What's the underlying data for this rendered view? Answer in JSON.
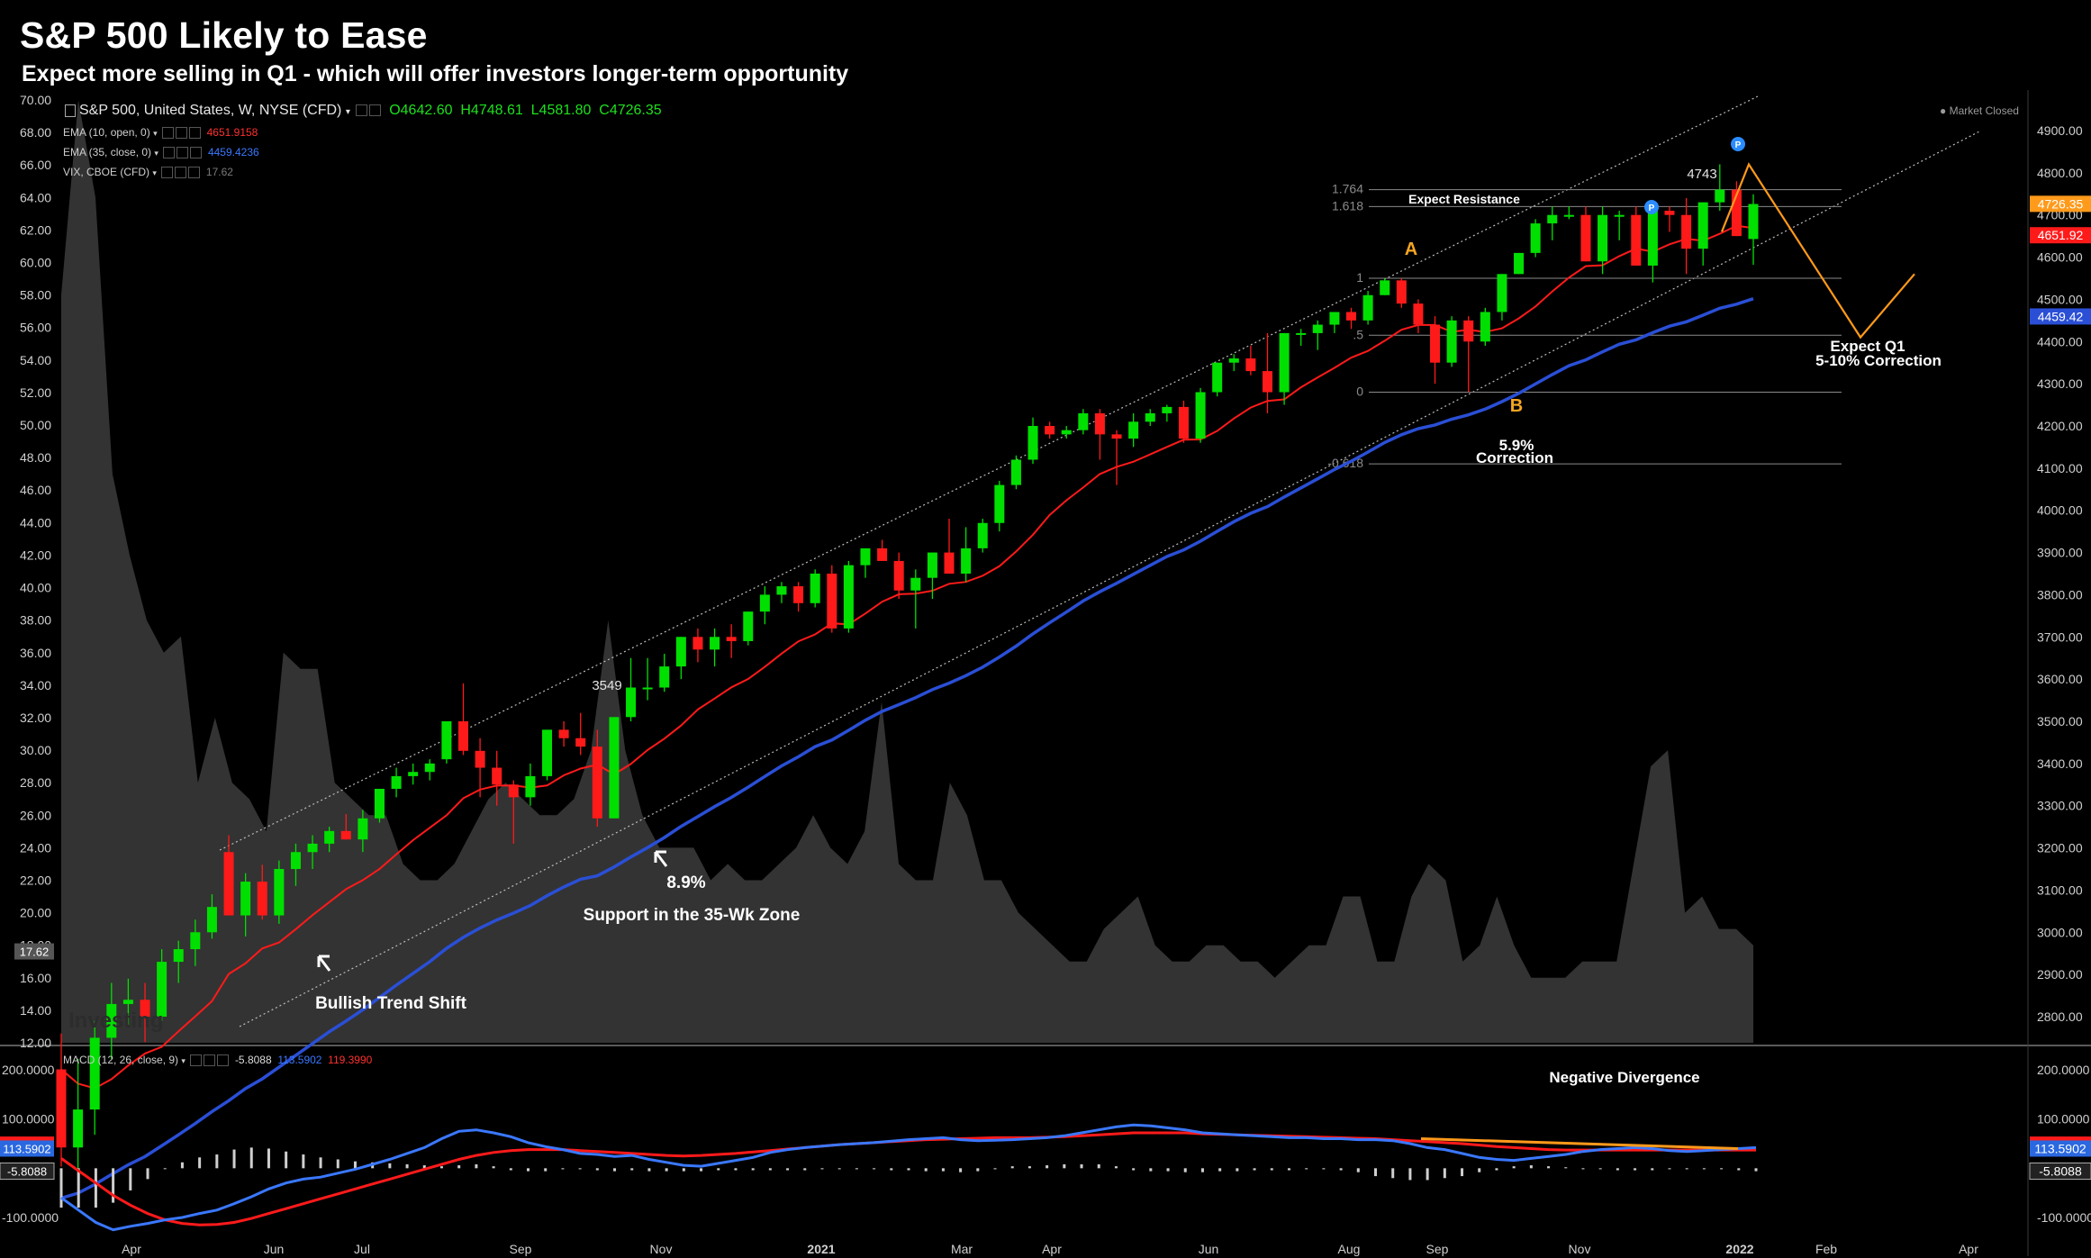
{
  "title": "S&P 500 Likely to Ease",
  "subtitle": "Expect more selling in Q1 - which will offer investors longer-term opportunity",
  "legend": {
    "instrument": "S&P 500, United States, W, NYSE (CFD)",
    "ohlc": {
      "open": "O4642.60",
      "high": "H4748.61",
      "low": "L4581.80",
      "close": "C4726.35"
    },
    "ema10": {
      "label": "EMA (10, open, 0)",
      "value": "4651.9158"
    },
    "ema35": {
      "label": "EMA (35, close, 0)",
      "value": "4459.4236"
    },
    "vix": {
      "label": "VIX, CBOE (CFD)",
      "value": "17.62"
    },
    "macd": {
      "label": "MACD (12, 26, close, 9)",
      "hist": "-5.8088",
      "macd": "113.5902",
      "signal": "119.3990"
    }
  },
  "market_status": "Market Closed",
  "watermark": "Investing",
  "colors": {
    "up": "#00e000",
    "down": "#ff1a1a",
    "ema10": "#ff1a1a",
    "ema35": "#2a4fd6",
    "vix_fill": "#333333",
    "macd_line": "#3a78ff",
    "signal_line": "#ff1a1a",
    "projection": "#ff9a1a",
    "fib_label": "#f5a623"
  },
  "chart_data": [
    {
      "type": "candlestick",
      "title": "S&P 500, United States, W, NYSE (CFD)",
      "y_right_ticks": [
        "4900.00",
        "4800.00",
        "4700.00",
        "4600.00",
        "4500.00",
        "4400.00",
        "4300.00",
        "4200.00",
        "4100.00",
        "4000.00",
        "3900.00",
        "3800.00",
        "3700.00",
        "3600.00",
        "3500.00",
        "3400.00",
        "3300.00",
        "3200.00",
        "3100.00",
        "3000.00",
        "2900.00",
        "2800.00"
      ],
      "y_left_ticks": [
        "70.00",
        "68.00",
        "66.00",
        "64.00",
        "62.00",
        "60.00",
        "58.00",
        "56.00",
        "54.00",
        "52.00",
        "50.00",
        "48.00",
        "46.00",
        "44.00",
        "42.00",
        "40.00",
        "38.00",
        "36.00",
        "34.00",
        "32.00",
        "30.00",
        "28.00",
        "26.00",
        "24.00",
        "22.00",
        "20.00",
        "18.00",
        "16.00",
        "14.00",
        "12.00"
      ],
      "x_ticks": [
        "Apr",
        "Jun",
        "Jul",
        "Sep",
        "Nov",
        "2021",
        "Mar",
        "Apr",
        "Jun",
        "Aug",
        "Sep",
        "Nov",
        "2022",
        "Feb",
        "Apr"
      ],
      "price_badges": [
        {
          "text": "4726.35",
          "value": 4726.35,
          "color": "#ff9a1a"
        },
        {
          "text": "4651.92",
          "value": 4651.92,
          "color": "#ff1a1a"
        },
        {
          "text": "4459.42",
          "value": 4459.42,
          "color": "#2a4fd6"
        }
      ],
      "vix_badge": "17.62",
      "candles": [
        [
          2675,
          2760,
          2445,
          2490
        ],
        [
          2490,
          2700,
          2420,
          2580
        ],
        [
          2580,
          2790,
          2520,
          2750
        ],
        [
          2750,
          2880,
          2700,
          2830
        ],
        [
          2830,
          2890,
          2780,
          2840
        ],
        [
          2840,
          2880,
          2740,
          2800
        ],
        [
          2800,
          2960,
          2790,
          2930
        ],
        [
          2930,
          2980,
          2880,
          2960
        ],
        [
          2960,
          3030,
          2920,
          3000
        ],
        [
          3000,
          3090,
          2985,
          3060
        ],
        [
          3190,
          3230,
          3050,
          3040
        ],
        [
          3040,
          3140,
          2990,
          3120
        ],
        [
          3120,
          3160,
          3030,
          3040
        ],
        [
          3040,
          3170,
          3020,
          3150
        ],
        [
          3150,
          3210,
          3110,
          3190
        ],
        [
          3190,
          3230,
          3150,
          3210
        ],
        [
          3210,
          3250,
          3190,
          3240
        ],
        [
          3240,
          3280,
          3220,
          3220
        ],
        [
          3220,
          3290,
          3190,
          3270
        ],
        [
          3270,
          3340,
          3260,
          3340
        ],
        [
          3340,
          3390,
          3320,
          3370
        ],
        [
          3370,
          3400,
          3350,
          3380
        ],
        [
          3380,
          3410,
          3360,
          3400
        ],
        [
          3410,
          3500,
          3400,
          3500
        ],
        [
          3500,
          3590,
          3420,
          3430
        ],
        [
          3430,
          3460,
          3320,
          3390
        ],
        [
          3390,
          3430,
          3300,
          3350
        ],
        [
          3350,
          3360,
          3210,
          3320
        ],
        [
          3320,
          3400,
          3300,
          3370
        ],
        [
          3370,
          3480,
          3360,
          3480
        ],
        [
          3480,
          3500,
          3440,
          3460
        ],
        [
          3460,
          3520,
          3420,
          3440
        ],
        [
          3440,
          3480,
          3250,
          3270
        ],
        [
          3270,
          3510,
          3270,
          3510
        ],
        [
          3510,
          3650,
          3500,
          3580
        ],
        [
          3580,
          3650,
          3550,
          3580
        ],
        [
          3580,
          3660,
          3570,
          3630
        ],
        [
          3630,
          3700,
          3600,
          3700
        ],
        [
          3700,
          3720,
          3640,
          3670
        ],
        [
          3670,
          3720,
          3630,
          3700
        ],
        [
          3700,
          3730,
          3650,
          3690
        ],
        [
          3690,
          3760,
          3680,
          3760
        ],
        [
          3760,
          3820,
          3730,
          3800
        ],
        [
          3800,
          3830,
          3780,
          3820
        ],
        [
          3820,
          3830,
          3760,
          3780
        ],
        [
          3780,
          3860,
          3770,
          3850
        ],
        [
          3850,
          3870,
          3710,
          3720
        ],
        [
          3720,
          3880,
          3710,
          3870
        ],
        [
          3870,
          3910,
          3840,
          3910
        ],
        [
          3910,
          3930,
          3880,
          3880
        ],
        [
          3880,
          3900,
          3790,
          3810
        ],
        [
          3810,
          3860,
          3720,
          3840
        ],
        [
          3840,
          3900,
          3790,
          3900
        ],
        [
          3900,
          3980,
          3850,
          3850
        ],
        [
          3850,
          3960,
          3830,
          3910
        ],
        [
          3910,
          3980,
          3900,
          3970
        ],
        [
          3970,
          4070,
          3950,
          4060
        ],
        [
          4060,
          4130,
          4050,
          4120
        ],
        [
          4120,
          4220,
          4110,
          4200
        ],
        [
          4200,
          4210,
          4170,
          4180
        ],
        [
          4180,
          4200,
          4170,
          4190
        ],
        [
          4190,
          4240,
          4180,
          4230
        ],
        [
          4230,
          4240,
          4120,
          4180
        ],
        [
          4180,
          4190,
          4060,
          4170
        ],
        [
          4170,
          4230,
          4150,
          4210
        ],
        [
          4210,
          4240,
          4200,
          4230
        ],
        [
          4230,
          4250,
          4210,
          4245
        ],
        [
          4245,
          4260,
          4160,
          4170
        ],
        [
          4170,
          4290,
          4160,
          4280
        ],
        [
          4280,
          4350,
          4270,
          4350
        ],
        [
          4350,
          4370,
          4330,
          4360
        ],
        [
          4360,
          4390,
          4320,
          4330
        ],
        [
          4330,
          4420,
          4230,
          4280
        ],
        [
          4280,
          4420,
          4250,
          4420
        ],
        [
          4420,
          4430,
          4390,
          4420
        ],
        [
          4420,
          4450,
          4380,
          4440
        ],
        [
          4440,
          4470,
          4420,
          4470
        ],
        [
          4470,
          4480,
          4430,
          4450
        ],
        [
          4450,
          4520,
          4440,
          4510
        ],
        [
          4510,
          4550,
          4510,
          4545
        ],
        [
          4545,
          4550,
          4480,
          4490
        ],
        [
          4490,
          4500,
          4420,
          4440
        ],
        [
          4440,
          4460,
          4300,
          4350
        ],
        [
          4350,
          4460,
          4340,
          4450
        ],
        [
          4450,
          4460,
          4280,
          4400
        ],
        [
          4400,
          4480,
          4390,
          4470
        ],
        [
          4470,
          4560,
          4450,
          4560
        ],
        [
          4560,
          4610,
          4560,
          4610
        ],
        [
          4610,
          4690,
          4600,
          4680
        ],
        [
          4680,
          4720,
          4640,
          4700
        ],
        [
          4700,
          4720,
          4690,
          4700
        ],
        [
          4700,
          4720,
          4590,
          4590
        ],
        [
          4590,
          4720,
          4560,
          4700
        ],
        [
          4700,
          4710,
          4640,
          4700
        ],
        [
          4700,
          4720,
          4580,
          4580
        ],
        [
          4580,
          4720,
          4540,
          4710
        ],
        [
          4710,
          4720,
          4660,
          4700
        ],
        [
          4700,
          4740,
          4560,
          4620
        ],
        [
          4620,
          4720,
          4580,
          4730
        ],
        [
          4730,
          4820,
          4710,
          4760
        ],
        [
          4760,
          4780,
          4650,
          4650
        ],
        [
          4643,
          4749,
          4582,
          4726
        ]
      ],
      "annotations": [
        {
          "text": "3549",
          "value": 3549
        },
        {
          "text": "4743",
          "value": 4743
        },
        {
          "text": "A"
        },
        {
          "text": "B"
        },
        {
          "text": "Expect Resistance"
        },
        {
          "text": "Bullish Trend Shift"
        },
        {
          "text": "8.9%"
        },
        {
          "text": "Support in the 35-Wk Zone"
        },
        {
          "text": "5.9%"
        },
        {
          "text": "Correction"
        },
        {
          "text": "Expect Q1"
        },
        {
          "text": "5-10% Correction"
        },
        {
          "text": "Negative Divergence"
        }
      ],
      "fib_levels": [
        {
          "label": "1.764",
          "value": 4760
        },
        {
          "label": "1.618",
          "value": 4720
        },
        {
          "label": "1",
          "value": 4550
        },
        {
          "label": ".5",
          "value": 4415
        },
        {
          "label": "0",
          "value": 4280
        },
        {
          "label": "-0.618",
          "value": 4110
        }
      ],
      "projection": [
        [
          4660,
          4820
        ],
        [
          4620,
          4410
        ],
        [
          4500,
          4560
        ]
      ]
    },
    {
      "type": "line",
      "title": "MACD (12, 26, close, 9)",
      "y_ticks": [
        "200.0000",
        "100.0000",
        "-100.0000"
      ],
      "badges": [
        "119.3990",
        "113.5902",
        "-5.8088"
      ],
      "macd": [
        -60,
        -85,
        -110,
        -125,
        -118,
        -112,
        -105,
        -100,
        -92,
        -85,
        -72,
        -58,
        -42,
        -30,
        -22,
        -18,
        -10,
        -2,
        8,
        18,
        30,
        42,
        60,
        75,
        78,
        72,
        64,
        52,
        44,
        38,
        30,
        28,
        24,
        26,
        18,
        12,
        6,
        4,
        10,
        16,
        22,
        32,
        38,
        42,
        45,
        48,
        50,
        52,
        55,
        58,
        60,
        62,
        58,
        56,
        57,
        58,
        60,
        62,
        66,
        72,
        78,
        84,
        88,
        86,
        82,
        78,
        72,
        70,
        68,
        66,
        64,
        62,
        62,
        60,
        60,
        58,
        58,
        56,
        50,
        42,
        38,
        30,
        22,
        18,
        16,
        20,
        24,
        28,
        34,
        38,
        40,
        42,
        40,
        36,
        34,
        36,
        38,
        40,
        42
      ],
      "signal": [
        20,
        -5,
        -30,
        -55,
        -75,
        -92,
        -105,
        -112,
        -115,
        -114,
        -110,
        -102,
        -92,
        -82,
        -72,
        -62,
        -52,
        -42,
        -32,
        -22,
        -12,
        -2,
        8,
        18,
        26,
        32,
        36,
        38,
        38,
        38,
        36,
        34,
        32,
        30,
        28,
        26,
        25,
        26,
        28,
        30,
        33,
        36,
        39,
        42,
        45,
        48,
        50,
        52,
        54,
        56,
        58,
        59,
        60,
        61,
        62,
        62,
        62,
        63,
        64,
        66,
        68,
        70,
        72,
        72,
        72,
        72,
        70,
        69,
        68,
        67,
        66,
        65,
        64,
        63,
        62,
        61,
        60,
        58,
        56,
        54,
        52,
        50,
        47,
        44,
        42,
        40,
        38,
        37,
        37,
        37,
        37,
        37,
        37,
        37,
        37,
        37,
        37,
        37,
        37
      ],
      "hist": [
        -80,
        -80,
        -80,
        -70,
        -45,
        -22,
        0,
        12,
        22,
        28,
        38,
        42,
        40,
        34,
        28,
        22,
        18,
        14,
        12,
        10,
        8,
        6,
        4,
        6,
        8,
        4,
        -4,
        -6,
        -6,
        -2,
        -2,
        -4,
        -6,
        -4,
        -6,
        -6,
        -6,
        -6,
        -4,
        -4,
        -4,
        -4,
        -4,
        -4,
        -2,
        -2,
        -2,
        -2,
        -4,
        -4,
        -6,
        -6,
        -8,
        -6,
        -2,
        4,
        4,
        6,
        8,
        8,
        8,
        4,
        -4,
        -6,
        -6,
        -8,
        -8,
        -6,
        -6,
        -4,
        -4,
        -4,
        -2,
        -2,
        -4,
        -8,
        -16,
        -20,
        -24,
        -24,
        -20,
        -16,
        -8,
        -4,
        4,
        6,
        4,
        2,
        -2,
        -2,
        -4,
        -4,
        -4,
        -2,
        -2,
        -2,
        -2,
        -4,
        -6
      ]
    }
  ]
}
